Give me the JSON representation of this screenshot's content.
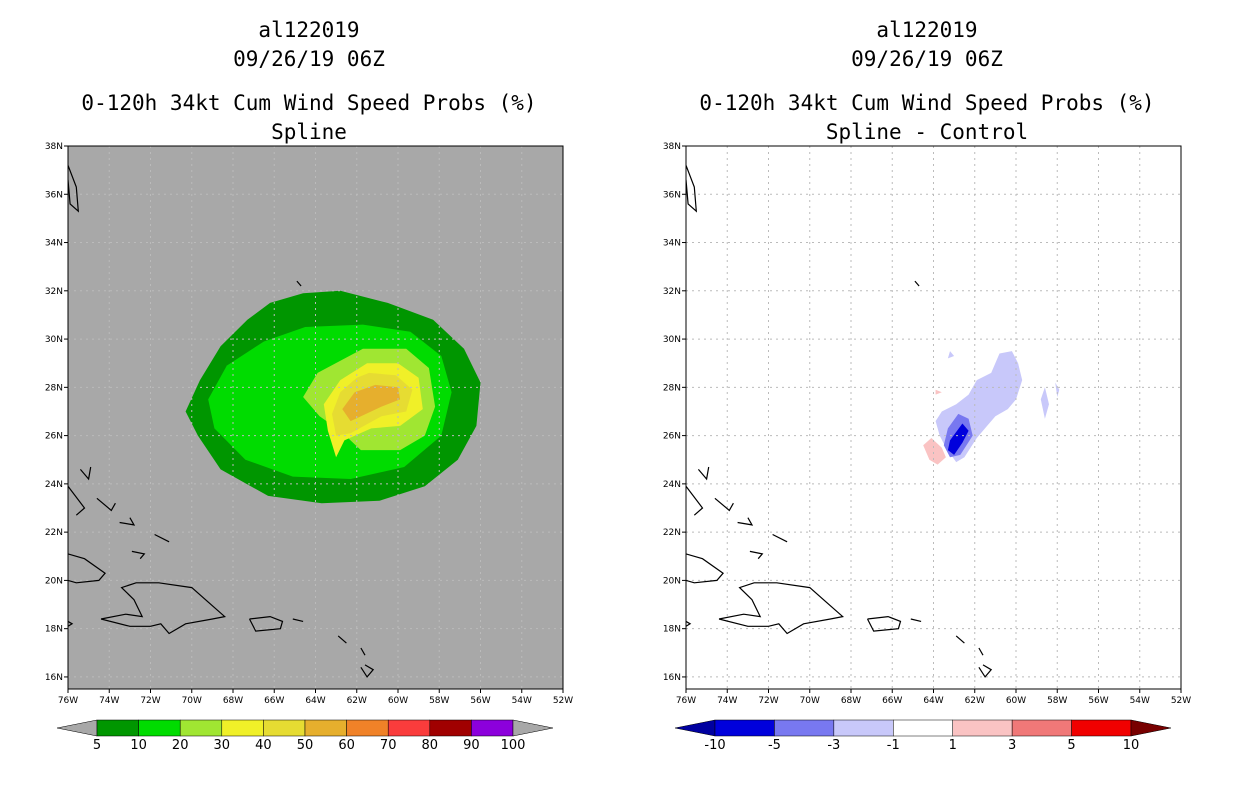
{
  "panels": [
    {
      "id": "left",
      "storm_id": "al122019",
      "datetime": "09/26/19 06Z",
      "title": "0-120h 34kt Cum Wind Speed Probs (%)",
      "subtitle": "Spline",
      "background": "#a8a8a8",
      "lat_labels": [
        "38N",
        "36N",
        "34N",
        "32N",
        "30N",
        "28N",
        "26N",
        "24N",
        "22N",
        "20N",
        "18N",
        "16N"
      ],
      "lon_labels": [
        "76W",
        "74W",
        "72W",
        "70W",
        "68W",
        "66W",
        "64W",
        "62W",
        "60W",
        "58W",
        "56W",
        "54W",
        "52W"
      ],
      "colorbar": {
        "labels": [
          "5",
          "10",
          "20",
          "30",
          "40",
          "50",
          "60",
          "70",
          "80",
          "90",
          "100"
        ],
        "colors": [
          "#009600",
          "#00dc00",
          "#a0e632",
          "#f0f028",
          "#e6dc32",
          "#e6af2d",
          "#f08228",
          "#fa3c3c",
          "#a00000",
          "#8c00dc"
        ],
        "end_left": "#a8a8a8",
        "end_right": "#a8a8a8"
      }
    },
    {
      "id": "right",
      "storm_id": "al122019",
      "datetime": "09/26/19 06Z",
      "title": "0-120h 34kt Cum Wind Speed Probs (%)",
      "subtitle": "Spline - Control",
      "background": "#ffffff",
      "lat_labels": [
        "38N",
        "36N",
        "34N",
        "32N",
        "30N",
        "28N",
        "26N",
        "24N",
        "22N",
        "20N",
        "18N",
        "16N"
      ],
      "lon_labels": [
        "76W",
        "74W",
        "72W",
        "70W",
        "68W",
        "66W",
        "64W",
        "62W",
        "60W",
        "58W",
        "56W",
        "54W",
        "52W"
      ],
      "colorbar": {
        "labels": [
          "-10",
          "-5",
          "-3",
          "-1",
          "1",
          "3",
          "5",
          "10"
        ],
        "colors": [
          "#0000dc",
          "#7878f0",
          "#c8c8fa",
          "#ffffff",
          "#fac3c3",
          "#f07878",
          "#f00000"
        ],
        "end_left": "#0000a0",
        "end_right": "#780000"
      }
    }
  ],
  "colors": {
    "prob_5": "#009600",
    "prob_10": "#00dc00",
    "prob_20": "#a0e632",
    "prob_30": "#f0f028",
    "prob_40": "#e6dc32",
    "prob_50": "#e6af2d",
    "diff_neg_10": "#0000dc",
    "diff_neg_5": "#7878f0",
    "diff_neg_3": "#c8c8fa",
    "diff_pos_1": "#fac3c3",
    "coast": "#000000",
    "grid": "#bbbbbb"
  }
}
